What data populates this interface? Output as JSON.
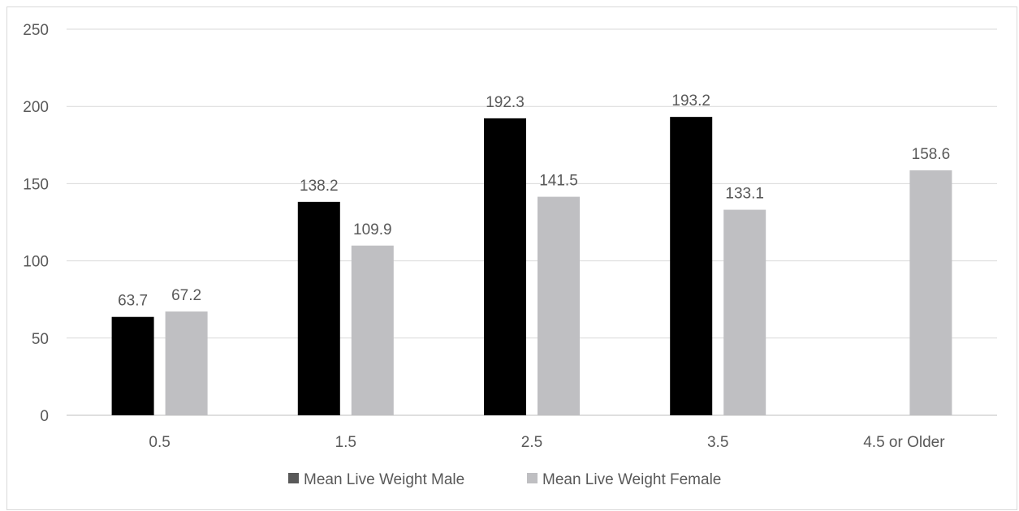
{
  "chart_data": {
    "type": "bar",
    "categories": [
      "0.5",
      "1.5",
      "2.5",
      "3.5",
      "4.5 or Older"
    ],
    "series": [
      {
        "name": "Mean Live Weight Male",
        "values": [
          63.7,
          138.2,
          192.3,
          193.2,
          null
        ],
        "color": "#000000"
      },
      {
        "name": "Mean Live Weight Female",
        "values": [
          67.2,
          109.9,
          141.5,
          133.1,
          158.6
        ],
        "color": "#bfbfc2"
      }
    ],
    "ylim": [
      0,
      250
    ],
    "yticks": [
      0,
      50,
      100,
      150,
      200,
      250
    ],
    "ytick_labels": [
      "0",
      "50",
      "100",
      "150",
      "200",
      "250"
    ],
    "grid": true,
    "legend_position": "bottom",
    "data_labels": true,
    "title": "",
    "xlabel": "",
    "ylabel": ""
  }
}
